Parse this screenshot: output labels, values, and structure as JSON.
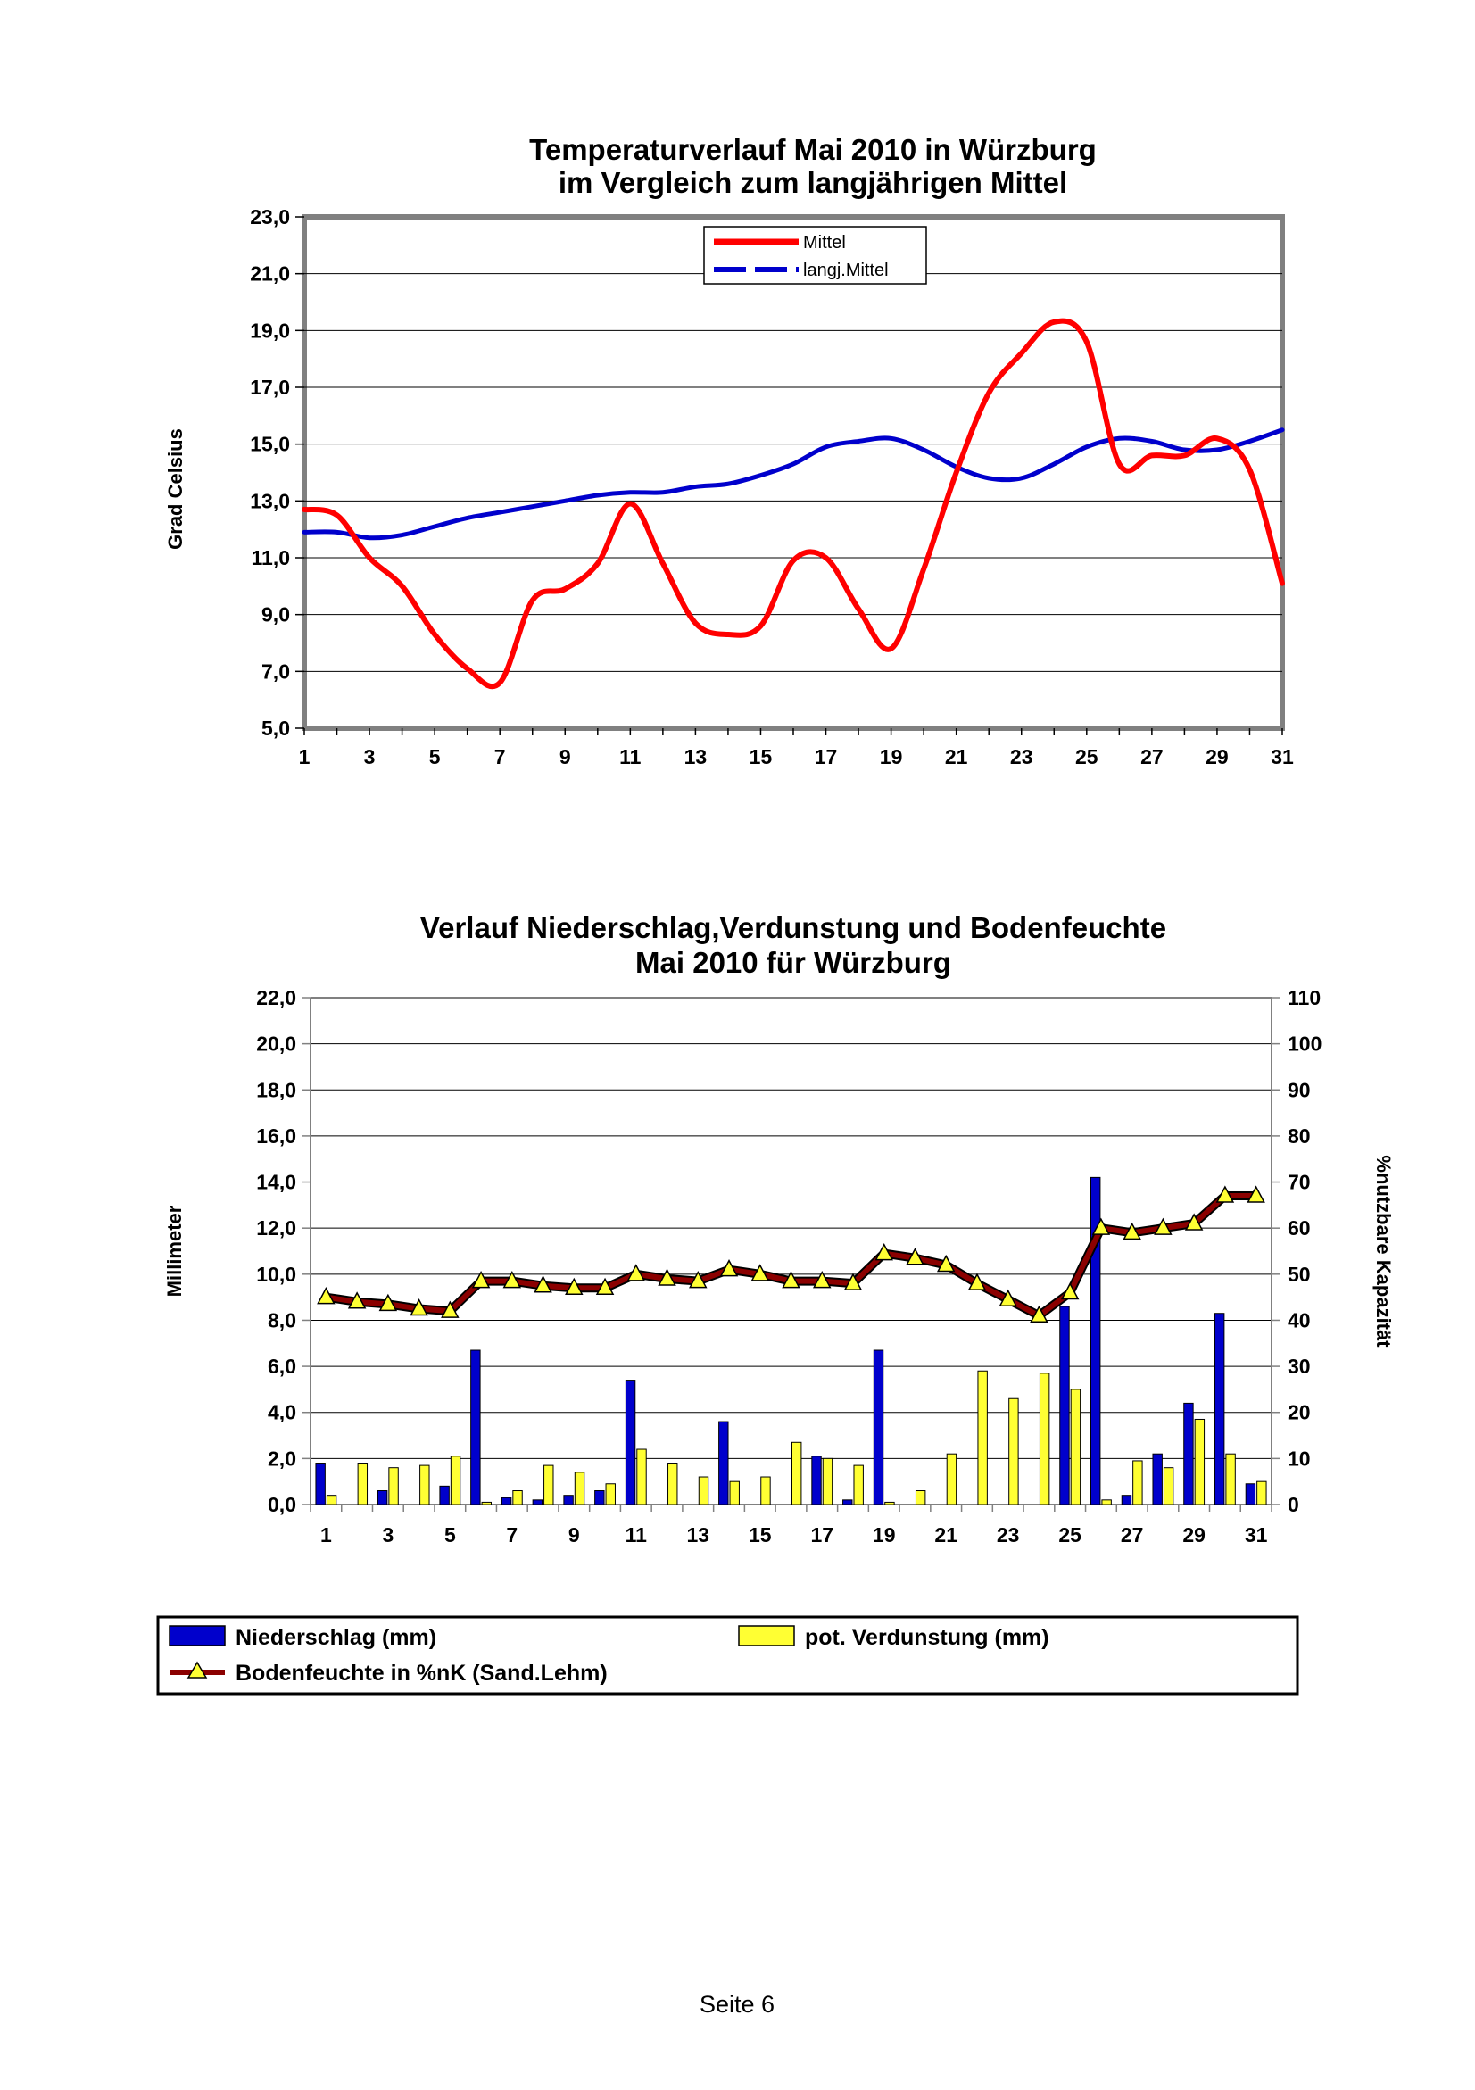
{
  "footer": "Seite 6",
  "chart_data": [
    {
      "type": "line",
      "title": [
        "Temperaturverlauf Mai 2010 in Würzburg",
        "im Vergleich zum langjährigen Mittel"
      ],
      "ylabel": "Grad Celsius",
      "xlabel": "",
      "ylim": [
        5.0,
        23.0
      ],
      "xlim": [
        1,
        31
      ],
      "y_ticks": [
        "5,0",
        "7,0",
        "9,0",
        "11,0",
        "13,0",
        "15,0",
        "17,0",
        "19,0",
        "21,0",
        "23,0"
      ],
      "x_ticks": [
        "1",
        "3",
        "5",
        "7",
        "9",
        "11",
        "13",
        "15",
        "17",
        "19",
        "21",
        "23",
        "25",
        "27",
        "29",
        "31"
      ],
      "grid": true,
      "legend_position": "top-center",
      "x": [
        1,
        2,
        3,
        4,
        5,
        6,
        7,
        8,
        9,
        10,
        11,
        12,
        13,
        14,
        15,
        16,
        17,
        18,
        19,
        20,
        21,
        22,
        23,
        24,
        25,
        26,
        27,
        28,
        29,
        30,
        31
      ],
      "series": [
        {
          "name": "Mittel",
          "color": "#ff0000",
          "values": [
            12.7,
            12.5,
            11.0,
            10.0,
            8.3,
            7.1,
            6.6,
            9.5,
            9.9,
            10.8,
            12.9,
            10.8,
            8.7,
            8.3,
            8.6,
            10.9,
            11.0,
            9.2,
            7.8,
            10.6,
            14.0,
            16.8,
            18.2,
            19.3,
            18.6,
            14.3,
            14.6,
            14.6,
            15.2,
            14.1,
            10.1
          ]
        },
        {
          "name": "langj.Mittel",
          "color": "#0000cc",
          "values": [
            11.9,
            11.9,
            11.7,
            11.8,
            12.1,
            12.4,
            12.6,
            12.8,
            13.0,
            13.2,
            13.3,
            13.3,
            13.5,
            13.6,
            13.9,
            14.3,
            14.9,
            15.1,
            15.2,
            14.8,
            14.2,
            13.8,
            13.8,
            14.3,
            14.9,
            15.2,
            15.1,
            14.8,
            14.8,
            15.1,
            15.5
          ]
        }
      ]
    },
    {
      "type": "bar",
      "title": [
        "Verlauf Niederschlag,Verdunstung und Bodenfeuchte",
        "Mai 2010 für Würzburg"
      ],
      "ylabel": "Millimeter",
      "y2label": "%nutzbare Kapazität",
      "ylim": [
        0.0,
        22.0
      ],
      "y2lim": [
        0,
        110
      ],
      "y_ticks": [
        "0,0",
        "2,0",
        "4,0",
        "6,0",
        "8,0",
        "10,0",
        "12,0",
        "14,0",
        "16,0",
        "18,0",
        "20,0",
        "22,0"
      ],
      "y2_ticks": [
        "0",
        "10",
        "20",
        "30",
        "40",
        "50",
        "60",
        "70",
        "80",
        "90",
        "100",
        "110"
      ],
      "x_ticks": [
        "1",
        "3",
        "5",
        "7",
        "9",
        "11",
        "13",
        "15",
        "17",
        "19",
        "21",
        "23",
        "25",
        "27",
        "29",
        "31"
      ],
      "grid": true,
      "legend_position": "bottom",
      "categories": [
        1,
        2,
        3,
        4,
        5,
        6,
        7,
        8,
        9,
        10,
        11,
        12,
        13,
        14,
        15,
        16,
        17,
        18,
        19,
        20,
        21,
        22,
        23,
        24,
        25,
        26,
        27,
        28,
        29,
        30,
        31
      ],
      "series": [
        {
          "name": "Niederschlag (mm)",
          "color": "#0000cc",
          "axis": "left",
          "values": [
            1.8,
            0,
            0.6,
            0,
            0.8,
            6.7,
            0.3,
            0.2,
            0.4,
            0.6,
            5.4,
            0,
            0,
            3.6,
            0,
            0,
            2.1,
            0.2,
            6.7,
            0,
            0,
            0,
            0,
            0,
            8.6,
            14.2,
            0.4,
            2.2,
            4.4,
            8.3,
            0.9
          ]
        },
        {
          "name": "pot. Verdunstung (mm)",
          "color": "#ffff33",
          "axis": "left",
          "values": [
            0.4,
            1.8,
            1.6,
            1.7,
            2.1,
            0.1,
            0.6,
            1.7,
            1.4,
            0.9,
            2.4,
            1.8,
            1.2,
            1.0,
            1.2,
            2.7,
            2.0,
            1.7,
            0.1,
            0.6,
            2.2,
            5.8,
            4.6,
            5.7,
            5.0,
            0.2,
            1.9,
            1.6,
            3.7,
            2.2,
            1.0
          ]
        },
        {
          "name": "Bodenfeuchte in %nK (Sand.Lehm)",
          "type": "line",
          "color": "#8b0000",
          "marker_color": "#ffff33",
          "axis": "right",
          "values": [
            45,
            44,
            43.5,
            42.5,
            42,
            48.5,
            48.5,
            47.5,
            47,
            47,
            50,
            49,
            48.5,
            51,
            50,
            48.5,
            48.5,
            48,
            54.5,
            53.5,
            52,
            48,
            44.5,
            41,
            46,
            60,
            59,
            60,
            61,
            67,
            67
          ]
        }
      ]
    }
  ]
}
